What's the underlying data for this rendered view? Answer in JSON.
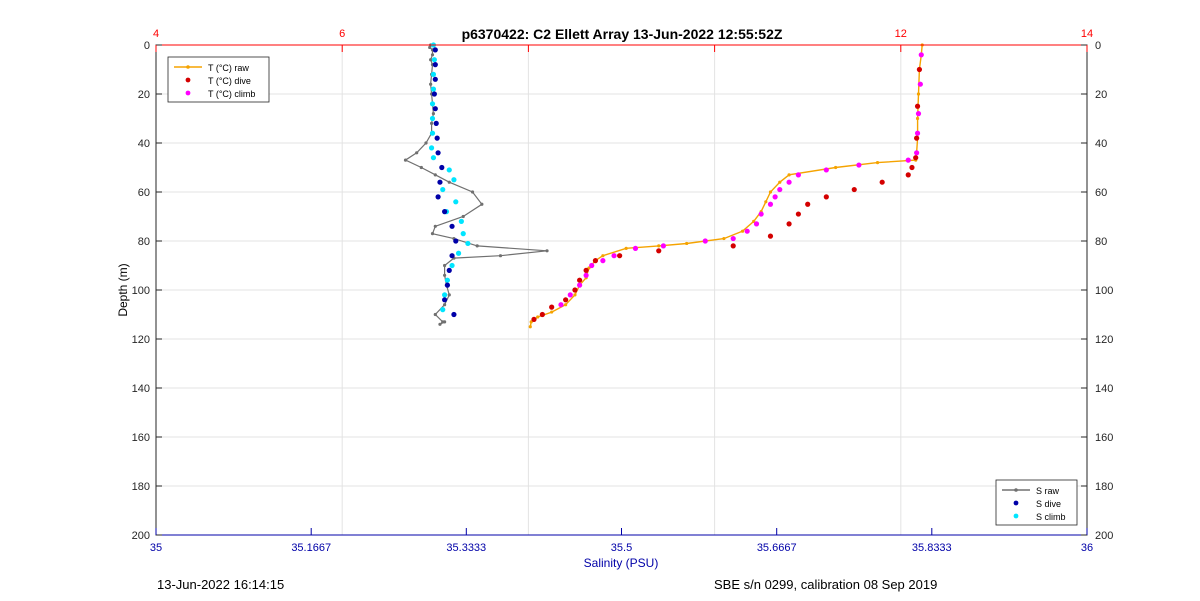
{
  "chart_data": {
    "type": "scatter",
    "title": "p6370422: C2 Ellett Array 13-Jun-2022 12:55:52Z",
    "ylabel": "Depth (m)",
    "xlabel_bottom": "Salinity (PSU)",
    "y_axis": {
      "ylim": [
        0,
        200
      ],
      "reversed": true,
      "ticks": [
        "0",
        "20",
        "40",
        "60",
        "80",
        "100",
        "120",
        "140",
        "160",
        "180",
        "200"
      ]
    },
    "x_bottom_axis": {
      "xlim": [
        35,
        36
      ],
      "ticks": [
        {
          "v": 35,
          "label": "35"
        },
        {
          "v": 35.1667,
          "label": "35.1667"
        },
        {
          "v": 35.3333,
          "label": "35.3333"
        },
        {
          "v": 35.5,
          "label": "35.5"
        },
        {
          "v": 35.6667,
          "label": "35.6667"
        },
        {
          "v": 35.8333,
          "label": "35.8333"
        },
        {
          "v": 36,
          "label": "36"
        }
      ]
    },
    "x_top_axis": {
      "xlim": [
        4,
        14
      ],
      "ticks": [
        {
          "v": 4,
          "label": "4"
        },
        {
          "v": 6,
          "label": "6"
        },
        {
          "v": 8,
          "label": ""
        },
        {
          "v": 10,
          "label": ""
        },
        {
          "v": 12,
          "label": "12"
        },
        {
          "v": 14,
          "label": "14"
        }
      ]
    },
    "grid": true,
    "legend_temperature": {
      "position": "top-left",
      "entries": [
        "T (°C) raw",
        "T (°C) dive",
        "T (°C) climb"
      ]
    },
    "legend_salinity": {
      "position": "bottom-right",
      "entries": [
        "S raw",
        "S dive",
        "S climb"
      ]
    },
    "colors": {
      "t_raw": "#f5a300",
      "t_dive": "#d40000",
      "t_climb": "#ff00ff",
      "s_raw": "#707070",
      "s_dive": "#0000a8",
      "s_climb": "#00e5ff",
      "top_axis": "#ff0000",
      "bottom_axis": "#0000a8"
    },
    "series": [
      {
        "name": "S raw",
        "axis": "bottom",
        "style": "line-markers",
        "points": [
          [
            35.295,
            0
          ],
          [
            35.294,
            1
          ],
          [
            35.297,
            2
          ],
          [
            35.297,
            4
          ],
          [
            35.295,
            6
          ],
          [
            35.297,
            8
          ],
          [
            35.296,
            12
          ],
          [
            35.295,
            16
          ],
          [
            35.296,
            20
          ],
          [
            35.297,
            24
          ],
          [
            35.298,
            28
          ],
          [
            35.296,
            32
          ],
          [
            35.296,
            36
          ],
          [
            35.29,
            40
          ],
          [
            35.28,
            44
          ],
          [
            35.268,
            47
          ],
          [
            35.285,
            50
          ],
          [
            35.3,
            53
          ],
          [
            35.315,
            56
          ],
          [
            35.34,
            60
          ],
          [
            35.35,
            65
          ],
          [
            35.33,
            70
          ],
          [
            35.3,
            74
          ],
          [
            35.297,
            77
          ],
          [
            35.32,
            79
          ],
          [
            35.345,
            82
          ],
          [
            35.42,
            84
          ],
          [
            35.37,
            86
          ],
          [
            35.32,
            87
          ],
          [
            35.31,
            90
          ],
          [
            35.31,
            94
          ],
          [
            35.312,
            98
          ],
          [
            35.315,
            102
          ],
          [
            35.31,
            106
          ],
          [
            35.3,
            110
          ],
          [
            35.308,
            113
          ],
          [
            35.305,
            114
          ],
          [
            35.31,
            113
          ]
        ]
      },
      {
        "name": "S dive",
        "axis": "bottom",
        "style": "dots",
        "points": [
          [
            35.3,
            2
          ],
          [
            35.3,
            8
          ],
          [
            35.3,
            14
          ],
          [
            35.299,
            20
          ],
          [
            35.3,
            26
          ],
          [
            35.301,
            32
          ],
          [
            35.302,
            38
          ],
          [
            35.303,
            44
          ],
          [
            35.307,
            50
          ],
          [
            35.305,
            56
          ],
          [
            35.303,
            62
          ],
          [
            35.31,
            68
          ],
          [
            35.318,
            74
          ],
          [
            35.322,
            80
          ],
          [
            35.318,
            86
          ],
          [
            35.315,
            92
          ],
          [
            35.313,
            98
          ],
          [
            35.31,
            104
          ],
          [
            35.32,
            110
          ]
        ]
      },
      {
        "name": "S climb",
        "axis": "bottom",
        "style": "dots",
        "points": [
          [
            35.298,
            0
          ],
          [
            35.299,
            6
          ],
          [
            35.298,
            12
          ],
          [
            35.298,
            18
          ],
          [
            35.297,
            24
          ],
          [
            35.297,
            30
          ],
          [
            35.297,
            36
          ],
          [
            35.296,
            42
          ],
          [
            35.298,
            46
          ],
          [
            35.315,
            51
          ],
          [
            35.32,
            55
          ],
          [
            35.308,
            59
          ],
          [
            35.322,
            64
          ],
          [
            35.312,
            68
          ],
          [
            35.328,
            72
          ],
          [
            35.33,
            77
          ],
          [
            35.335,
            81
          ],
          [
            35.325,
            85
          ],
          [
            35.318,
            90
          ],
          [
            35.313,
            96
          ],
          [
            35.31,
            102
          ],
          [
            35.308,
            108
          ]
        ]
      },
      {
        "name": "T (°C) raw",
        "axis": "top",
        "style": "line-markers",
        "points": [
          [
            12.23,
            0
          ],
          [
            12.22,
            4
          ],
          [
            12.2,
            10
          ],
          [
            12.19,
            20
          ],
          [
            12.18,
            30
          ],
          [
            12.18,
            38
          ],
          [
            12.17,
            44
          ],
          [
            12.16,
            47
          ],
          [
            11.75,
            48
          ],
          [
            11.3,
            50
          ],
          [
            10.8,
            53
          ],
          [
            10.7,
            56
          ],
          [
            10.6,
            60
          ],
          [
            10.55,
            64
          ],
          [
            10.5,
            68
          ],
          [
            10.42,
            72
          ],
          [
            10.3,
            76
          ],
          [
            10.1,
            79
          ],
          [
            9.7,
            81
          ],
          [
            9.4,
            82
          ],
          [
            9.05,
            83
          ],
          [
            8.8,
            86
          ],
          [
            8.72,
            88
          ],
          [
            8.65,
            91
          ],
          [
            8.62,
            95
          ],
          [
            8.55,
            98
          ],
          [
            8.5,
            102
          ],
          [
            8.4,
            106
          ],
          [
            8.25,
            109
          ],
          [
            8.1,
            111
          ],
          [
            8.03,
            113
          ],
          [
            8.02,
            115
          ]
        ]
      },
      {
        "name": "T (°C) dive",
        "axis": "top",
        "style": "dots",
        "points": [
          [
            12.2,
            10
          ],
          [
            12.18,
            25
          ],
          [
            12.17,
            38
          ],
          [
            12.16,
            46
          ],
          [
            12.12,
            50
          ],
          [
            12.08,
            53
          ],
          [
            11.8,
            56
          ],
          [
            11.5,
            59
          ],
          [
            11.2,
            62
          ],
          [
            11.0,
            65
          ],
          [
            10.9,
            69
          ],
          [
            10.8,
            73
          ],
          [
            10.6,
            78
          ],
          [
            10.2,
            82
          ],
          [
            9.4,
            84
          ],
          [
            8.98,
            86
          ],
          [
            8.72,
            88
          ],
          [
            8.62,
            92
          ],
          [
            8.55,
            96
          ],
          [
            8.5,
            100
          ],
          [
            8.4,
            104
          ],
          [
            8.25,
            107
          ],
          [
            8.15,
            110
          ],
          [
            8.06,
            112
          ]
        ]
      },
      {
        "name": "T (°C) climb",
        "axis": "top",
        "style": "dots",
        "points": [
          [
            12.22,
            4
          ],
          [
            12.21,
            16
          ],
          [
            12.19,
            28
          ],
          [
            12.18,
            36
          ],
          [
            12.17,
            44
          ],
          [
            12.08,
            47
          ],
          [
            11.55,
            49
          ],
          [
            11.2,
            51
          ],
          [
            10.9,
            53
          ],
          [
            10.8,
            56
          ],
          [
            10.7,
            59
          ],
          [
            10.65,
            62
          ],
          [
            10.6,
            65
          ],
          [
            10.5,
            69
          ],
          [
            10.45,
            73
          ],
          [
            10.35,
            76
          ],
          [
            10.2,
            79
          ],
          [
            9.9,
            80
          ],
          [
            9.45,
            82
          ],
          [
            9.15,
            83
          ],
          [
            8.92,
            86
          ],
          [
            8.8,
            88
          ],
          [
            8.68,
            90
          ],
          [
            8.62,
            94
          ],
          [
            8.55,
            98
          ],
          [
            8.45,
            102
          ],
          [
            8.35,
            106
          ]
        ]
      }
    ]
  },
  "footer": {
    "timestamp": "13-Jun-2022 16:14:15",
    "calibration": "SBE s/n 0299, calibration 08 Sep 2019"
  }
}
